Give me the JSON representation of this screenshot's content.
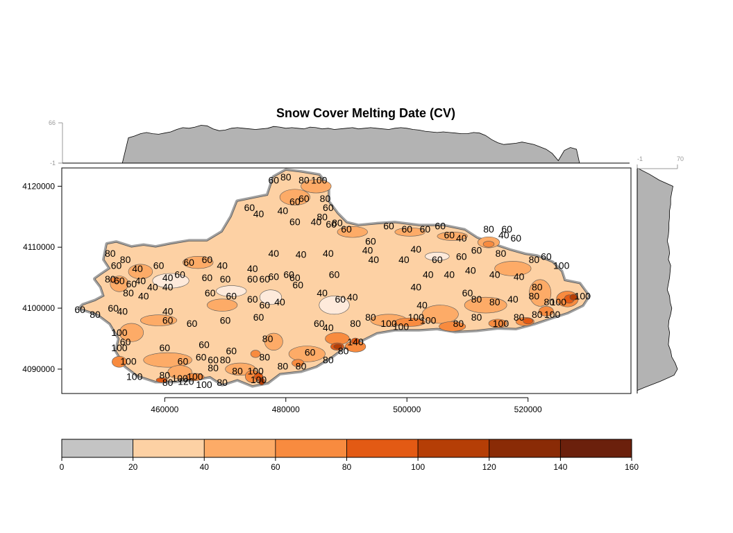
{
  "chart_data": {
    "type": "heatmap",
    "title": "Snow Cover Melting Date (CV)",
    "x_axis": {
      "range": [
        443000,
        537000
      ],
      "ticks": [
        460000,
        480000,
        500000,
        520000
      ],
      "tick_labels": [
        "460000",
        "480000",
        "500000",
        "520000"
      ]
    },
    "y_axis": {
      "range": [
        4086000,
        4123000
      ],
      "ticks": [
        4090000,
        4100000,
        4110000,
        4120000
      ],
      "tick_labels": [
        "4090000",
        "4100000",
        "4110000",
        "4120000"
      ]
    },
    "top_marginal": {
      "type": "area",
      "range_labels": [
        "-1",
        "66"
      ],
      "x": [
        454000,
        455000,
        456000,
        457000,
        458000,
        459000,
        460000,
        461000,
        462000,
        463000,
        464000,
        465000,
        466000,
        467000,
        468000,
        469000,
        470000,
        471000,
        472000,
        473000,
        474000,
        475000,
        476000,
        477000,
        478000,
        479000,
        480000,
        481000,
        482000,
        483000,
        484000,
        485000,
        486000,
        487000,
        488000,
        489000,
        490000,
        491000,
        492000,
        493000,
        494000,
        495000,
        496000,
        497000,
        498000,
        499000,
        500000,
        501000,
        502000,
        503000,
        504000,
        505000,
        506000,
        507000,
        508000,
        509000,
        510000,
        511000,
        512000,
        513000,
        514000,
        515000,
        516000,
        517000,
        518000,
        519000,
        520000,
        521000,
        522000,
        523000,
        524000,
        525000,
        526000,
        527000,
        528000
      ],
      "values": [
        41,
        44,
        48,
        50,
        48,
        47,
        49,
        51,
        55,
        58,
        57,
        59,
        62,
        61,
        56,
        53,
        54,
        57,
        58,
        57,
        56,
        55,
        56,
        57,
        60,
        59,
        57,
        58,
        57,
        56,
        59,
        58,
        56,
        57,
        55,
        56,
        57,
        58,
        56,
        57,
        58,
        57,
        56,
        55,
        57,
        58,
        57,
        55,
        54,
        52,
        51,
        50,
        51,
        50,
        49,
        48,
        48,
        50,
        49,
        45,
        38,
        33,
        30,
        31,
        32,
        34,
        32,
        30,
        26,
        22,
        15,
        3,
        20,
        25,
        22
      ]
    },
    "right_marginal": {
      "type": "area",
      "range_labels": [
        "-1",
        "70"
      ],
      "y": [
        4122000,
        4121000,
        4120000,
        4119000,
        4118000,
        4117000,
        4116000,
        4115000,
        4114000,
        4113000,
        4112000,
        4111000,
        4110000,
        4109000,
        4108000,
        4107000,
        4106000,
        4105000,
        4104000,
        4103000,
        4102000,
        4101000,
        4100000,
        4099000,
        4098000,
        4097000,
        4096000,
        4095000,
        4094000,
        4093000,
        4092000,
        4091000,
        4090000,
        4089000,
        4088000,
        4087000
      ],
      "values": [
        20,
        38,
        62,
        60,
        58,
        58,
        56,
        56,
        55,
        55,
        54,
        52,
        55,
        56,
        54,
        58,
        57,
        56,
        54,
        52,
        56,
        57,
        60,
        58,
        55,
        54,
        56,
        55,
        54,
        58,
        60,
        66,
        70,
        64,
        40,
        12
      ]
    },
    "colorbar": {
      "breaks": [
        0,
        20,
        40,
        60,
        80,
        100,
        120,
        140,
        160
      ],
      "tick_labels": [
        "0",
        "20",
        "40",
        "60",
        "80",
        "100",
        "120",
        "140",
        "160"
      ],
      "colors": [
        "#c4c4c4",
        "#feeadb",
        "#fdd1a4",
        "#fdab67",
        "#f88b3f",
        "#e35a14",
        "#b53e06",
        "#8a2b06",
        "#6b200c"
      ]
    },
    "contour_labels": [
      {
        "x": 451000,
        "y": 4109000,
        "text": "80"
      },
      {
        "x": 453500,
        "y": 4108000,
        "text": "80"
      },
      {
        "x": 452000,
        "y": 4107000,
        "text": "60"
      },
      {
        "x": 455500,
        "y": 4106500,
        "text": "40"
      },
      {
        "x": 459000,
        "y": 4107000,
        "text": "60"
      },
      {
        "x": 464000,
        "y": 4107500,
        "text": "60"
      },
      {
        "x": 467000,
        "y": 4108000,
        "text": "60"
      },
      {
        "x": 469500,
        "y": 4107000,
        "text": "40"
      },
      {
        "x": 474500,
        "y": 4106500,
        "text": "40"
      },
      {
        "x": 478000,
        "y": 4109000,
        "text": "40"
      },
      {
        "x": 482500,
        "y": 4108800,
        "text": "40"
      },
      {
        "x": 487000,
        "y": 4109000,
        "text": "40"
      },
      {
        "x": 494500,
        "y": 4108000,
        "text": "40"
      },
      {
        "x": 499500,
        "y": 4108000,
        "text": "40"
      },
      {
        "x": 505000,
        "y": 4108000,
        "text": "60"
      },
      {
        "x": 509000,
        "y": 4108500,
        "text": "60"
      },
      {
        "x": 511500,
        "y": 4109500,
        "text": "60"
      },
      {
        "x": 515500,
        "y": 4109000,
        "text": "80"
      },
      {
        "x": 521000,
        "y": 4108000,
        "text": "80"
      },
      {
        "x": 523000,
        "y": 4108500,
        "text": "60"
      },
      {
        "x": 525500,
        "y": 4107000,
        "text": "100"
      },
      {
        "x": 478000,
        "y": 4121000,
        "text": "60"
      },
      {
        "x": 480000,
        "y": 4121500,
        "text": "80"
      },
      {
        "x": 483000,
        "y": 4121000,
        "text": "80"
      },
      {
        "x": 485500,
        "y": 4121000,
        "text": "100"
      },
      {
        "x": 483000,
        "y": 4118000,
        "text": "60"
      },
      {
        "x": 479500,
        "y": 4116000,
        "text": "40"
      },
      {
        "x": 474000,
        "y": 4116500,
        "text": "60"
      },
      {
        "x": 475500,
        "y": 4115500,
        "text": "40"
      },
      {
        "x": 481500,
        "y": 4117500,
        "text": "60"
      },
      {
        "x": 486500,
        "y": 4118000,
        "text": "80"
      },
      {
        "x": 487000,
        "y": 4116500,
        "text": "60"
      },
      {
        "x": 486000,
        "y": 4115000,
        "text": "80"
      },
      {
        "x": 481500,
        "y": 4114200,
        "text": "60"
      },
      {
        "x": 485000,
        "y": 4114200,
        "text": "40"
      },
      {
        "x": 487500,
        "y": 4113800,
        "text": "60"
      },
      {
        "x": 488500,
        "y": 4114000,
        "text": "80"
      },
      {
        "x": 490000,
        "y": 4113000,
        "text": "60"
      },
      {
        "x": 497000,
        "y": 4113500,
        "text": "60"
      },
      {
        "x": 500000,
        "y": 4113000,
        "text": "60"
      },
      {
        "x": 503000,
        "y": 4113000,
        "text": "60"
      },
      {
        "x": 505500,
        "y": 4113500,
        "text": "60"
      },
      {
        "x": 509000,
        "y": 4111500,
        "text": "40"
      },
      {
        "x": 513500,
        "y": 4113000,
        "text": "80"
      },
      {
        "x": 516500,
        "y": 4113000,
        "text": "60"
      },
      {
        "x": 494000,
        "y": 4111000,
        "text": "60"
      },
      {
        "x": 493500,
        "y": 4109500,
        "text": "40"
      },
      {
        "x": 501500,
        "y": 4109700,
        "text": "40"
      },
      {
        "x": 516000,
        "y": 4112000,
        "text": "40"
      },
      {
        "x": 518000,
        "y": 4111500,
        "text": "60"
      },
      {
        "x": 507000,
        "y": 4112000,
        "text": "60"
      },
      {
        "x": 451000,
        "y": 4104800,
        "text": "80"
      },
      {
        "x": 452500,
        "y": 4104500,
        "text": "60"
      },
      {
        "x": 454500,
        "y": 4104000,
        "text": "60"
      },
      {
        "x": 456000,
        "y": 4104500,
        "text": "40"
      },
      {
        "x": 458000,
        "y": 4103500,
        "text": "40"
      },
      {
        "x": 460500,
        "y": 4105000,
        "text": "40"
      },
      {
        "x": 462500,
        "y": 4105500,
        "text": "60"
      },
      {
        "x": 467000,
        "y": 4105000,
        "text": "60"
      },
      {
        "x": 470000,
        "y": 4104800,
        "text": "60"
      },
      {
        "x": 474500,
        "y": 4104800,
        "text": "60"
      },
      {
        "x": 476500,
        "y": 4104800,
        "text": "60"
      },
      {
        "x": 478000,
        "y": 4105200,
        "text": "60"
      },
      {
        "x": 480500,
        "y": 4105500,
        "text": "60"
      },
      {
        "x": 481500,
        "y": 4105000,
        "text": "60"
      },
      {
        "x": 488000,
        "y": 4105500,
        "text": "60"
      },
      {
        "x": 503500,
        "y": 4105500,
        "text": "40"
      },
      {
        "x": 507000,
        "y": 4105500,
        "text": "40"
      },
      {
        "x": 510500,
        "y": 4106200,
        "text": "40"
      },
      {
        "x": 514500,
        "y": 4105500,
        "text": "40"
      },
      {
        "x": 518500,
        "y": 4105200,
        "text": "40"
      },
      {
        "x": 521500,
        "y": 4103500,
        "text": "80"
      },
      {
        "x": 454000,
        "y": 4102500,
        "text": "80"
      },
      {
        "x": 456500,
        "y": 4102000,
        "text": "40"
      },
      {
        "x": 460500,
        "y": 4103500,
        "text": "40"
      },
      {
        "x": 467500,
        "y": 4102500,
        "text": "60"
      },
      {
        "x": 471000,
        "y": 4102000,
        "text": "60"
      },
      {
        "x": 474500,
        "y": 4101500,
        "text": "60"
      },
      {
        "x": 476500,
        "y": 4100500,
        "text": "60"
      },
      {
        "x": 479000,
        "y": 4101000,
        "text": "40"
      },
      {
        "x": 482000,
        "y": 4103800,
        "text": "60"
      },
      {
        "x": 486000,
        "y": 4102500,
        "text": "40"
      },
      {
        "x": 489000,
        "y": 4101500,
        "text": "60"
      },
      {
        "x": 491000,
        "y": 4101800,
        "text": "40"
      },
      {
        "x": 501500,
        "y": 4103500,
        "text": "40"
      },
      {
        "x": 502500,
        "y": 4100500,
        "text": "40"
      },
      {
        "x": 510000,
        "y": 4102500,
        "text": "60"
      },
      {
        "x": 511500,
        "y": 4101500,
        "text": "80"
      },
      {
        "x": 514500,
        "y": 4101000,
        "text": "80"
      },
      {
        "x": 517500,
        "y": 4101500,
        "text": "40"
      },
      {
        "x": 521000,
        "y": 4102000,
        "text": "80"
      },
      {
        "x": 523500,
        "y": 4101000,
        "text": "80"
      },
      {
        "x": 525000,
        "y": 4101000,
        "text": "100"
      },
      {
        "x": 529000,
        "y": 4102000,
        "text": "100"
      },
      {
        "x": 446000,
        "y": 4099800,
        "text": "60"
      },
      {
        "x": 448500,
        "y": 4099000,
        "text": "80"
      },
      {
        "x": 451500,
        "y": 4100000,
        "text": "60"
      },
      {
        "x": 453000,
        "y": 4099500,
        "text": "40"
      },
      {
        "x": 460500,
        "y": 4099500,
        "text": "40"
      },
      {
        "x": 460500,
        "y": 4098000,
        "text": "60"
      },
      {
        "x": 464500,
        "y": 4097500,
        "text": "60"
      },
      {
        "x": 470000,
        "y": 4098000,
        "text": "60"
      },
      {
        "x": 475500,
        "y": 4098500,
        "text": "60"
      },
      {
        "x": 485500,
        "y": 4097500,
        "text": "60"
      },
      {
        "x": 487000,
        "y": 4096800,
        "text": "40"
      },
      {
        "x": 491500,
        "y": 4097500,
        "text": "80"
      },
      {
        "x": 494000,
        "y": 4098500,
        "text": "80"
      },
      {
        "x": 497000,
        "y": 4097500,
        "text": "100"
      },
      {
        "x": 499000,
        "y": 4097000,
        "text": "100"
      },
      {
        "x": 501500,
        "y": 4098500,
        "text": "100"
      },
      {
        "x": 503500,
        "y": 4098000,
        "text": "100"
      },
      {
        "x": 508500,
        "y": 4097500,
        "text": "80"
      },
      {
        "x": 511500,
        "y": 4098500,
        "text": "80"
      },
      {
        "x": 515500,
        "y": 4097500,
        "text": "100"
      },
      {
        "x": 518500,
        "y": 4098500,
        "text": "80"
      },
      {
        "x": 521500,
        "y": 4099000,
        "text": "80"
      },
      {
        "x": 524000,
        "y": 4099000,
        "text": "100"
      },
      {
        "x": 452500,
        "y": 4096000,
        "text": "100"
      },
      {
        "x": 453500,
        "y": 4094500,
        "text": "60"
      },
      {
        "x": 452500,
        "y": 4093500,
        "text": "100"
      },
      {
        "x": 460000,
        "y": 4093500,
        "text": "60"
      },
      {
        "x": 466500,
        "y": 4094000,
        "text": "60"
      },
      {
        "x": 471000,
        "y": 4093000,
        "text": "60"
      },
      {
        "x": 477000,
        "y": 4095000,
        "text": "80"
      },
      {
        "x": 484000,
        "y": 4092800,
        "text": "60"
      },
      {
        "x": 489500,
        "y": 4093000,
        "text": "80"
      },
      {
        "x": 491500,
        "y": 4094500,
        "text": "140"
      },
      {
        "x": 466000,
        "y": 4092000,
        "text": "60"
      },
      {
        "x": 468000,
        "y": 4091500,
        "text": "60"
      },
      {
        "x": 470000,
        "y": 4091500,
        "text": "80"
      },
      {
        "x": 463000,
        "y": 4091300,
        "text": "60"
      },
      {
        "x": 476500,
        "y": 4092000,
        "text": "80"
      },
      {
        "x": 487000,
        "y": 4091500,
        "text": "80"
      },
      {
        "x": 479500,
        "y": 4090500,
        "text": "80"
      },
      {
        "x": 482500,
        "y": 4090500,
        "text": "80"
      },
      {
        "x": 454000,
        "y": 4091300,
        "text": "100"
      },
      {
        "x": 455000,
        "y": 4088800,
        "text": "100"
      },
      {
        "x": 460000,
        "y": 4089000,
        "text": "80"
      },
      {
        "x": 462500,
        "y": 4088500,
        "text": "100"
      },
      {
        "x": 465000,
        "y": 4088800,
        "text": "100"
      },
      {
        "x": 468000,
        "y": 4090200,
        "text": "80"
      },
      {
        "x": 472000,
        "y": 4089700,
        "text": "80"
      },
      {
        "x": 475000,
        "y": 4089700,
        "text": "100"
      },
      {
        "x": 475500,
        "y": 4088300,
        "text": "100"
      },
      {
        "x": 469500,
        "y": 4087800,
        "text": "80"
      },
      {
        "x": 466500,
        "y": 4087500,
        "text": "100"
      },
      {
        "x": 463500,
        "y": 4088000,
        "text": "120"
      },
      {
        "x": 460500,
        "y": 4087800,
        "text": "80"
      }
    ]
  }
}
